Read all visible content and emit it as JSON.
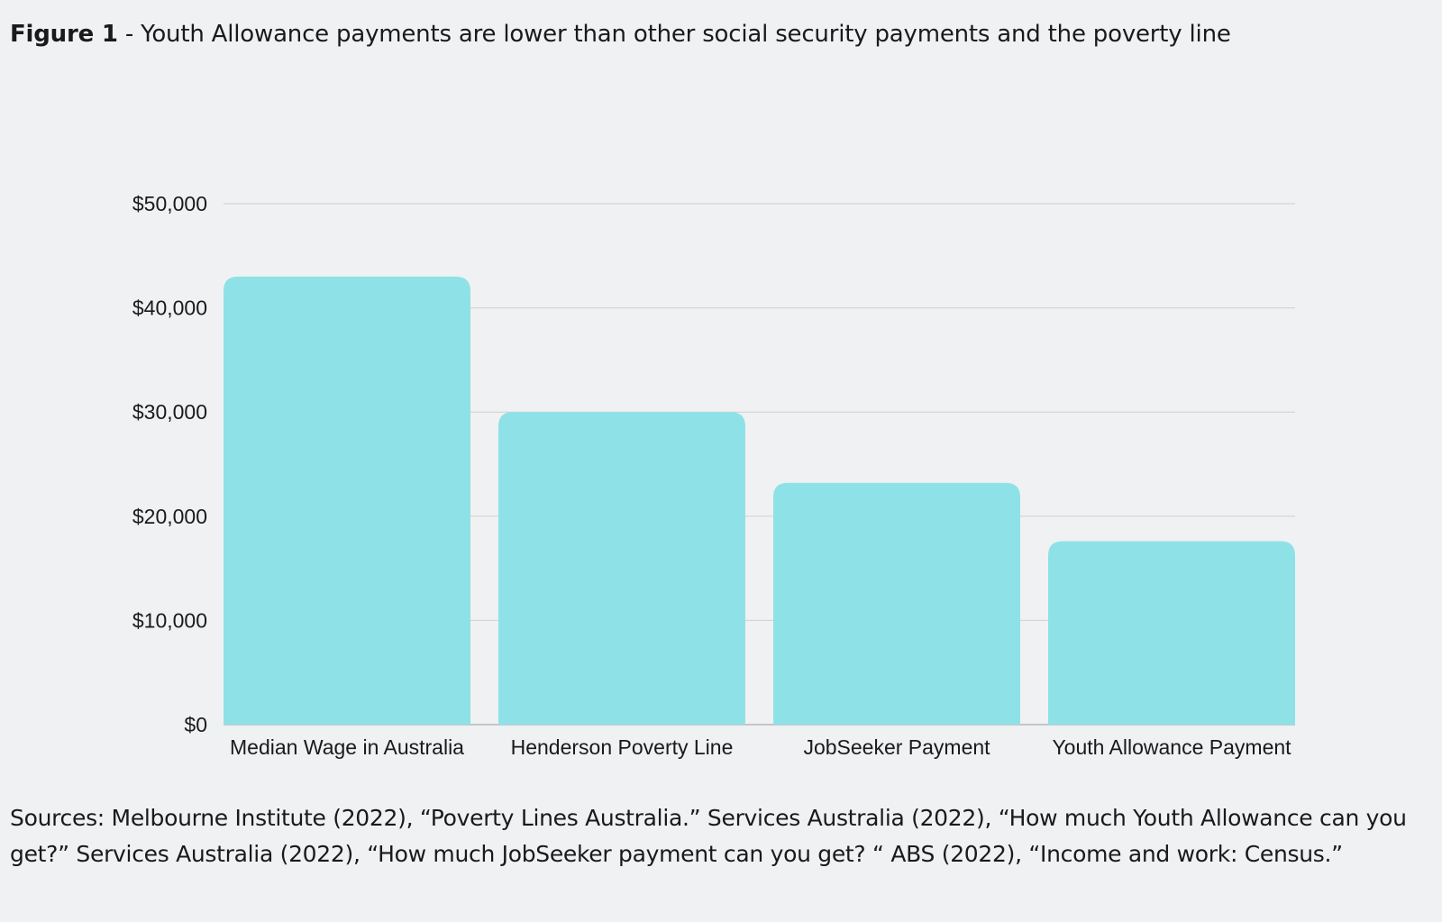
{
  "header": {
    "figure_label": "Figure 1",
    "separator": " - ",
    "title": "Youth Allowance payments are lower than other social security payments and the poverty line"
  },
  "chart_data": {
    "type": "bar",
    "title": "Youth Allowance payments are lower than other social security payments and the poverty line",
    "xlabel": "",
    "ylabel": "",
    "categories": [
      "Median Wage in Australia",
      "Henderson Poverty Line",
      "JobSeeker Payment",
      "Youth Allowance Payment"
    ],
    "values": [
      43000,
      30000,
      23200,
      17600
    ],
    "ylim": [
      0,
      50000
    ],
    "yticks": [
      0,
      10000,
      20000,
      30000,
      40000,
      50000
    ],
    "ytick_labels": [
      "$0",
      "$10,000",
      "$20,000",
      "$30,000",
      "$40,000",
      "$50,000"
    ],
    "grid": true,
    "legend": "none",
    "bar_color": "#8ee2e7",
    "grid_color": "#cfcfcf"
  },
  "footer": {
    "sources": "Sources: Melbourne Institute (2022), “Poverty Lines Australia.” Services Australia (2022), “How much Youth Allowance can you get?” Services Australia (2022), “How much JobSeeker payment can you get? “ ABS (2022), “Income and work: Census.”"
  }
}
